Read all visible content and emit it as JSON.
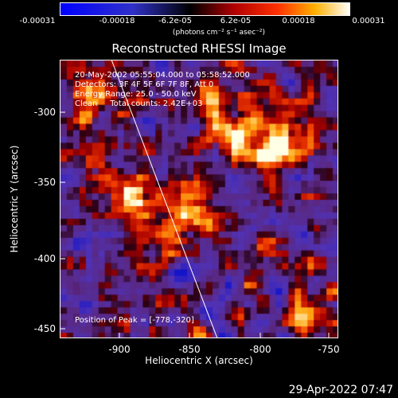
{
  "colorbar": {
    "tick_labels": [
      "-0.00031",
      "-0.00018",
      "-6.2e-05",
      "6.2e-05",
      "0.00018",
      "0.00031"
    ],
    "units": "(photons cm⁻² s⁻¹ asec⁻²)"
  },
  "plot": {
    "title": "Reconstructed RHESSI Image",
    "info_lines": [
      "20-May-2002 05:55:04.000 to 05:58:52.000",
      "Detectors: 3F 4F 5F 6F 7F 8F, Att 0",
      "Energy Range: 25.0 - 50.0 keV",
      "Clean     Total counts: 2.42E+03"
    ],
    "peak_text": "Position of Peak = [-778,-320]",
    "xlabel": "Heliocentric X (arcsec)",
    "ylabel": "Heliocentric Y (arcsec)",
    "xticks": [
      "-900",
      "-850",
      "-800",
      "-750"
    ],
    "yticks": [
      "-300",
      "-350",
      "-400",
      "-450"
    ]
  },
  "footer": {
    "timestamp": "29-Apr-2022 07:47"
  }
}
